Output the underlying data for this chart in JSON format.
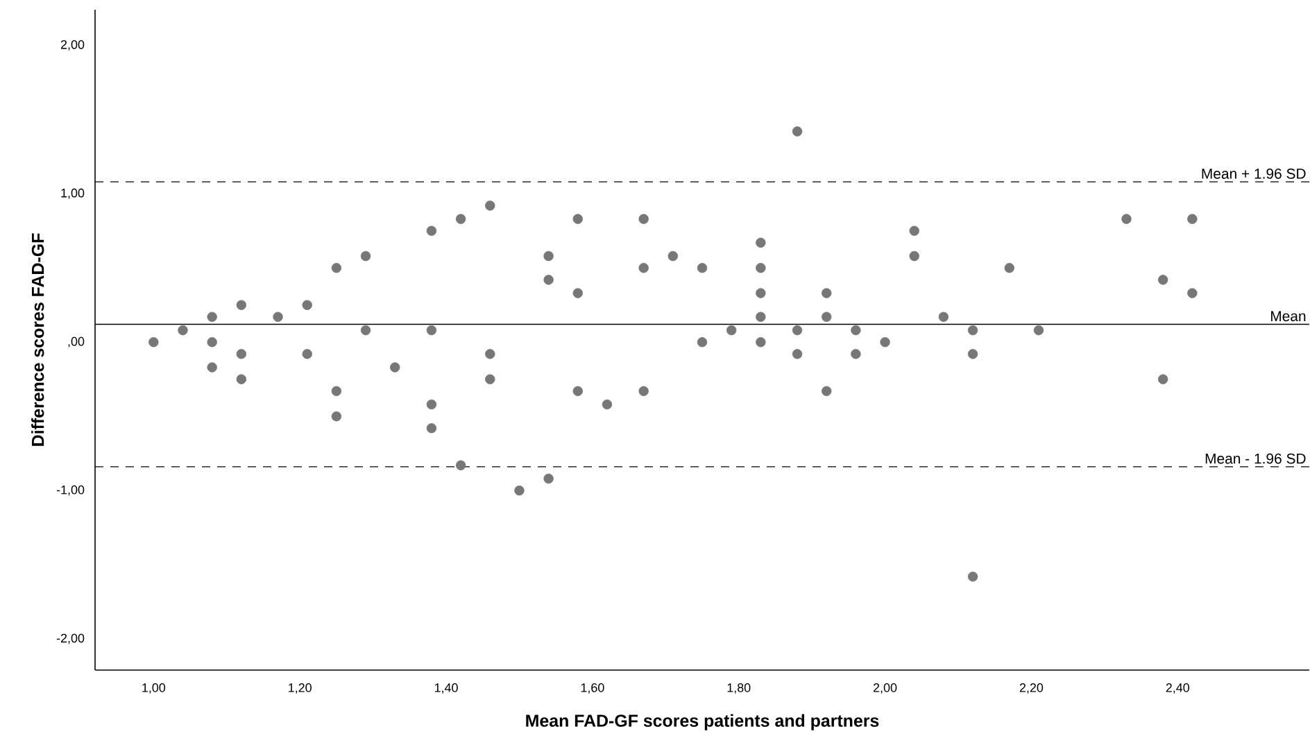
{
  "chart_data": {
    "type": "scatter",
    "xlabel": "Mean FAD-GF scores patients and partners",
    "ylabel": "Difference scores FAD-GF",
    "series": [
      {
        "color": "#777777",
        "x": [
          1.0,
          1.04,
          1.08,
          1.08,
          1.08,
          1.12,
          1.12,
          1.12,
          1.17,
          1.21,
          1.21,
          1.25,
          1.25,
          1.25,
          1.29,
          1.29,
          1.33,
          1.38,
          1.38,
          1.38,
          1.38,
          1.42,
          1.42,
          1.46,
          1.46,
          1.46,
          1.5,
          1.54,
          1.54,
          1.54,
          1.58,
          1.58,
          1.58,
          1.62,
          1.67,
          1.67,
          1.67,
          1.71,
          1.75,
          1.75,
          1.79,
          1.83,
          1.83,
          1.83,
          1.83,
          1.83,
          1.88,
          1.88,
          1.88,
          1.92,
          1.92,
          1.92,
          1.96,
          1.96,
          2.0,
          2.04,
          2.04,
          2.08,
          2.12,
          2.12,
          2.12,
          2.17,
          2.21,
          2.33,
          2.38,
          2.38,
          2.42,
          2.42
        ],
        "values": [
          0.0,
          0.08,
          0.17,
          0.0,
          -0.17,
          0.25,
          -0.08,
          -0.25,
          0.17,
          0.25,
          -0.08,
          0.5,
          -0.33,
          -0.5,
          0.58,
          0.08,
          -0.17,
          0.75,
          0.08,
          -0.42,
          -0.58,
          0.83,
          -0.83,
          0.92,
          -0.08,
          -0.25,
          -1.0,
          -0.92,
          0.58,
          0.42,
          0.83,
          0.33,
          -0.33,
          -0.42,
          0.83,
          0.5,
          -0.33,
          0.58,
          0.5,
          0.0,
          0.08,
          0.67,
          0.5,
          0.33,
          0.17,
          0.0,
          1.42,
          0.08,
          -0.08,
          0.33,
          0.17,
          -0.33,
          0.08,
          -0.08,
          0.0,
          0.75,
          0.58,
          0.17,
          0.08,
          -0.08,
          -1.58,
          0.5,
          0.08,
          0.83,
          0.42,
          -0.25,
          0.83,
          0.33
        ]
      }
    ],
    "marker": "circle",
    "xlim": [
      0.92,
      2.58
    ],
    "ylim": [
      -2.21,
      2.24
    ],
    "xticks": [
      {
        "value": 1.0,
        "label": "1,00"
      },
      {
        "value": 1.2,
        "label": "1,20"
      },
      {
        "value": 1.4,
        "label": "1,40"
      },
      {
        "value": 1.6,
        "label": "1,60"
      },
      {
        "value": 1.8,
        "label": "1,80"
      },
      {
        "value": 2.0,
        "label": "2,00"
      },
      {
        "value": 2.2,
        "label": "2,20"
      },
      {
        "value": 2.4,
        "label": "2,40"
      }
    ],
    "yticks": [
      {
        "value": -2.0,
        "label": "-2,00"
      },
      {
        "value": -1.0,
        "label": "-1,00"
      },
      {
        "value": 0.0,
        "label": ",00"
      },
      {
        "value": 1.0,
        "label": "1,00"
      },
      {
        "value": 2.0,
        "label": "2,00"
      }
    ],
    "ref_lines": [
      {
        "axis": "y",
        "value": 1.08,
        "label": "Mean + 1.96 SD",
        "line_style": "dashed"
      },
      {
        "axis": "y",
        "value": 0.12,
        "label": "Mean",
        "line_style": "solid"
      },
      {
        "axis": "y",
        "value": -0.84,
        "label": "Mean - 1.96 SD",
        "line_style": "dashed"
      }
    ],
    "grid": false
  }
}
